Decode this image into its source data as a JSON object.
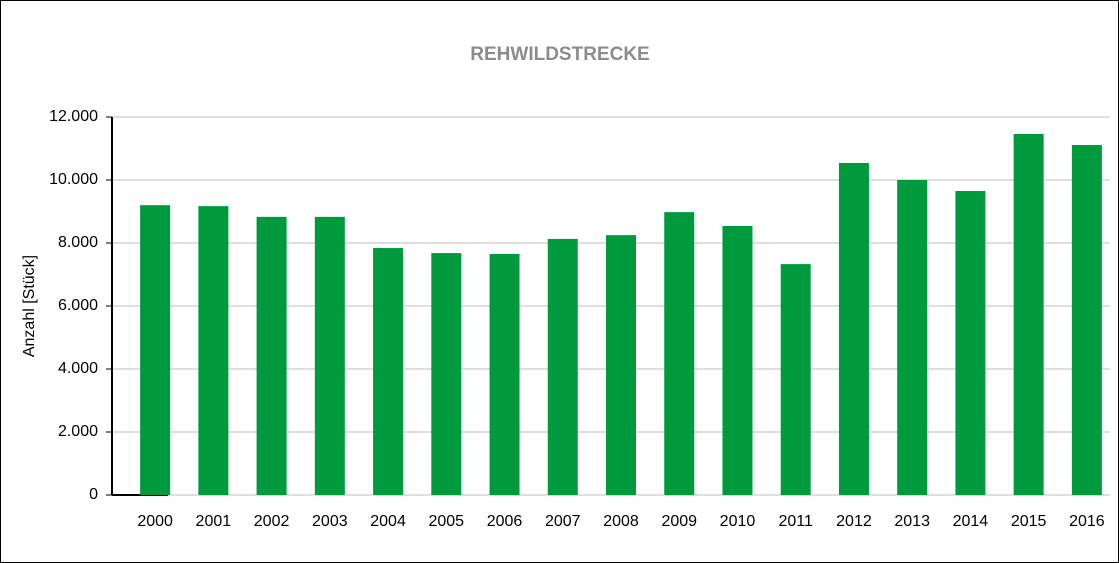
{
  "chart_data": {
    "type": "bar",
    "title": "REHWILDSTRECKE",
    "y_label": "Anzahl [Stück]",
    "categories": [
      "2000",
      "2001",
      "2002",
      "2003",
      "2004",
      "2005",
      "2006",
      "2007",
      "2008",
      "2009",
      "2010",
      "2011",
      "2012",
      "2013",
      "2014",
      "2015",
      "2016"
    ],
    "values": [
      9200,
      9170,
      8830,
      8830,
      7840,
      7680,
      7650,
      8130,
      8250,
      8980,
      8540,
      7330,
      10540,
      10000,
      9650,
      11460,
      11110
    ],
    "color": "#009a3e",
    "ylim": [
      0,
      12000
    ],
    "yticks": [
      0,
      {
        "value": 2000,
        "label": "2.000"
      },
      {
        "value": 4000,
        "label": "4.000"
      },
      {
        "value": 6000,
        "label": "6.000"
      },
      {
        "value": 8000,
        "label": "8.000"
      },
      {
        "value": 10000,
        "label": "10.000"
      },
      {
        "value": 12000,
        "label": "12.000"
      }
    ],
    "grid": true
  }
}
